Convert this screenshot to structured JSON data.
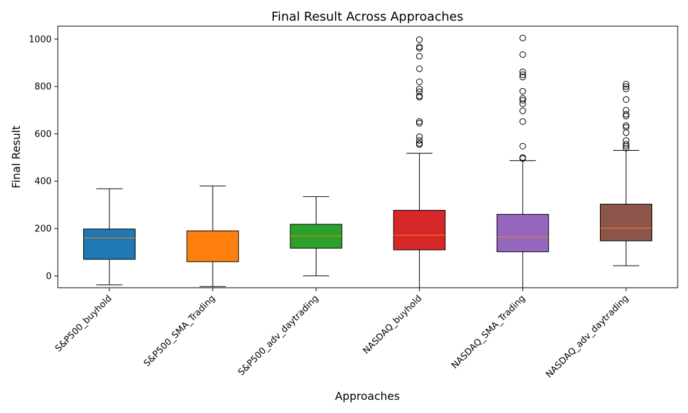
{
  "chart_data": {
    "type": "box",
    "title": "Final Result Across Approaches",
    "xlabel": "Approaches",
    "ylabel": "Final Result",
    "ylim": [
      -50,
      1055
    ],
    "yticks": [
      0,
      200,
      400,
      600,
      800,
      1000
    ],
    "grid": false,
    "categories": [
      "S&P500_buyhold",
      "S&P500_SMA_Trading",
      "S&P500_adv_daytrading",
      "NASDAQ_buyhold",
      "NASDAQ_SMA_Trading",
      "NASDAQ_adv_daytrading"
    ],
    "series": [
      {
        "whisker_low": -38,
        "q1": 70,
        "median": 160,
        "q3": 198,
        "whisker_high": 368,
        "outliers": [],
        "color": "#1f77b4"
      },
      {
        "whisker_low": -45,
        "q1": 60,
        "median": 160,
        "q3": 190,
        "whisker_high": 380,
        "outliers": [],
        "color": "#ff7f0e"
      },
      {
        "whisker_low": 0,
        "q1": 117,
        "median": 168,
        "q3": 218,
        "whisker_high": 335,
        "outliers": [],
        "color": "#2ca02c"
      },
      {
        "whisker_low": -50,
        "q1": 110,
        "median": 172,
        "q3": 277,
        "whisker_high": 518,
        "outliers": [
          555,
          560,
          572,
          588,
          645,
          652,
          755,
          760,
          778,
          790,
          820,
          875,
          928,
          962,
          968,
          998
        ],
        "color": "#d62728"
      },
      {
        "whisker_low": -50,
        "q1": 102,
        "median": 165,
        "q3": 260,
        "whisker_high": 487,
        "outliers": [
          496,
          500,
          548,
          652,
          697,
          727,
          742,
          750,
          780,
          840,
          850,
          862,
          935,
          1005
        ],
        "color": "#9467bd"
      },
      {
        "whisker_low": 43,
        "q1": 148,
        "median": 202,
        "q3": 303,
        "whisker_high": 530,
        "outliers": [
          540,
          548,
          556,
          572,
          605,
          628,
          635,
          675,
          683,
          700,
          745,
          790,
          800,
          810
        ],
        "color": "#8c564b"
      }
    ],
    "median_color": "#ff7f0e"
  }
}
